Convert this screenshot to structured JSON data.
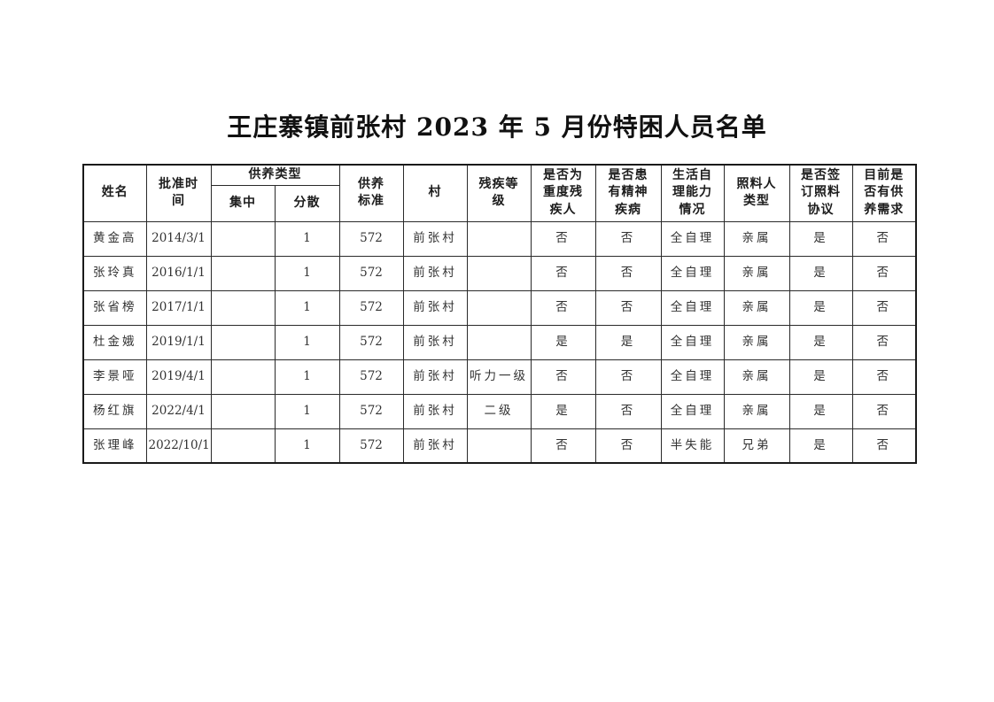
{
  "page": {
    "title": "王庄寨镇前张村 2023 年 5 月份特困人员名单"
  },
  "table": {
    "headers": {
      "name": "姓名",
      "approval_time": "批准时\n间",
      "support_type": "供养类型",
      "centralized": "集中",
      "decentralized": "分散",
      "support_standard": "供养\n标准",
      "village": "村",
      "disability_level": "残疾等\n级",
      "severely_disabled": "是否为\n重度残\n疾人",
      "mental_illness": "是否患\n有精神\n疾病",
      "self_care_ability": "生活自\n理能力\n情况",
      "caregiver_type": "照料人\n类型",
      "care_agreement": "是否签\n订照料\n协议",
      "support_need": "目前是\n否有供\n养需求"
    },
    "rows": [
      [
        "黄金高",
        "2014/3/1",
        "",
        "1",
        "572",
        "前张村",
        "",
        "否",
        "否",
        "全自理",
        "亲属",
        "是",
        "否"
      ],
      [
        "张玲真",
        "2016/1/1",
        "",
        "1",
        "572",
        "前张村",
        "",
        "否",
        "否",
        "全自理",
        "亲属",
        "是",
        "否"
      ],
      [
        "张省榜",
        "2017/1/1",
        "",
        "1",
        "572",
        "前张村",
        "",
        "否",
        "否",
        "全自理",
        "亲属",
        "是",
        "否"
      ],
      [
        "杜金娥",
        "2019/1/1",
        "",
        "1",
        "572",
        "前张村",
        "",
        "是",
        "是",
        "全自理",
        "亲属",
        "是",
        "否"
      ],
      [
        "李景哑",
        "2019/4/1",
        "",
        "1",
        "572",
        "前张村",
        "听力一级",
        "否",
        "否",
        "全自理",
        "亲属",
        "是",
        "否"
      ],
      [
        "杨红旗",
        "2022/4/1",
        "",
        "1",
        "572",
        "前张村",
        "二级",
        "是",
        "否",
        "全自理",
        "亲属",
        "是",
        "否"
      ],
      [
        "张理峰",
        "2022/10/1",
        "",
        "1",
        "572",
        "前张村",
        "",
        "否",
        "否",
        "半失能",
        "兄弟",
        "是",
        "否"
      ]
    ]
  }
}
